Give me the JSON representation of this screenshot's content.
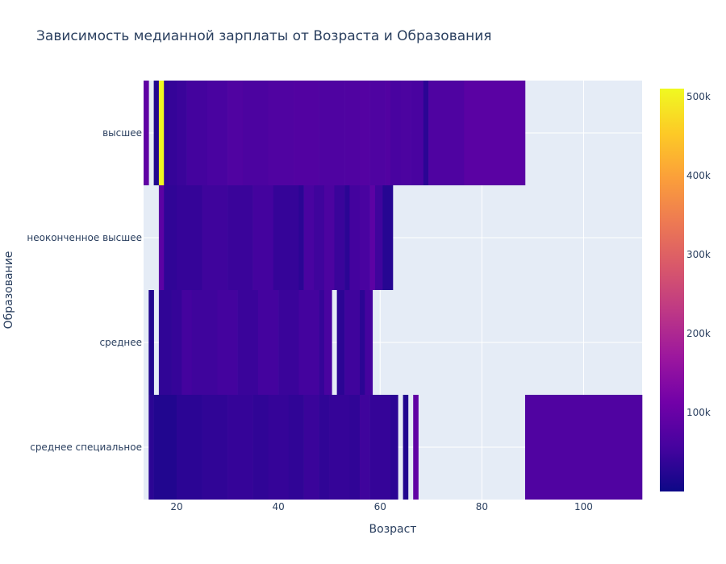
{
  "chart_data": {
    "type": "heatmap",
    "title": "Зависимость медианной зарплаты от Возраста и Образования",
    "xlabel": "Возраст",
    "ylabel": "Образование",
    "xlim": [
      13.5,
      111.5
    ],
    "xticks": [
      20,
      40,
      60,
      80,
      100
    ],
    "categories": [
      "высшее",
      "неоконченное высшее",
      "среднее",
      "среднее специальное"
    ],
    "colorscale": [
      "#0d0887",
      "#46039f",
      "#7201a8",
      "#9c179e",
      "#bd3786",
      "#d8576b",
      "#ed7953",
      "#fb9f3a",
      "#fdca26",
      "#f0f921"
    ],
    "colorbar": {
      "min": 0,
      "max": 510000,
      "ticks": [
        100000,
        200000,
        300000,
        400000,
        500000
      ],
      "tick_labels": [
        "100k",
        "200k",
        "300k",
        "400k",
        "500k"
      ]
    },
    "grid": true,
    "rows": [
      {
        "name": "высшее",
        "cells": [
          {
            "x0": 13.5,
            "x1": 14.5,
            "v": 90000
          },
          {
            "x0": 15.5,
            "x1": 16.5,
            "v": 20000
          },
          {
            "x0": 16.5,
            "x1": 17.5,
            "v": 510000
          },
          {
            "x0": 17.5,
            "x1": 18.5,
            "v": 35000
          },
          {
            "x0": 18.5,
            "x1": 20,
            "v": 40000
          },
          {
            "x0": 20,
            "x1": 22,
            "v": 45000
          },
          {
            "x0": 22,
            "x1": 26,
            "v": 55000
          },
          {
            "x0": 26,
            "x1": 30,
            "v": 60000
          },
          {
            "x0": 30,
            "x1": 33,
            "v": 70000
          },
          {
            "x0": 33,
            "x1": 38,
            "v": 65000
          },
          {
            "x0": 38,
            "x1": 43,
            "v": 70000
          },
          {
            "x0": 43,
            "x1": 48,
            "v": 72000
          },
          {
            "x0": 48,
            "x1": 53,
            "v": 68000
          },
          {
            "x0": 53,
            "x1": 56,
            "v": 70000
          },
          {
            "x0": 56,
            "x1": 58,
            "v": 75000
          },
          {
            "x0": 58,
            "x1": 61,
            "v": 68000
          },
          {
            "x0": 61,
            "x1": 62,
            "v": 72000
          },
          {
            "x0": 62,
            "x1": 64,
            "v": 60000
          },
          {
            "x0": 64,
            "x1": 66,
            "v": 65000
          },
          {
            "x0": 66,
            "x1": 68.5,
            "v": 60000
          },
          {
            "x0": 68.5,
            "x1": 69.5,
            "v": 30000
          },
          {
            "x0": 69.5,
            "x1": 76.5,
            "v": 68000
          },
          {
            "x0": 76.5,
            "x1": 88.5,
            "v": 82000
          }
        ]
      },
      {
        "name": "неоконченное высшее",
        "cells": [
          {
            "x0": 16.5,
            "x1": 17.5,
            "v": 85000
          },
          {
            "x0": 17.5,
            "x1": 20,
            "v": 35000
          },
          {
            "x0": 20,
            "x1": 25,
            "v": 40000
          },
          {
            "x0": 25,
            "x1": 30,
            "v": 50000
          },
          {
            "x0": 30,
            "x1": 35,
            "v": 45000
          },
          {
            "x0": 35,
            "x1": 39,
            "v": 55000
          },
          {
            "x0": 39,
            "x1": 44,
            "v": 40000
          },
          {
            "x0": 44,
            "x1": 45,
            "v": 30000
          },
          {
            "x0": 45,
            "x1": 47,
            "v": 60000
          },
          {
            "x0": 47,
            "x1": 49,
            "v": 50000
          },
          {
            "x0": 49,
            "x1": 51,
            "v": 65000
          },
          {
            "x0": 51,
            "x1": 53,
            "v": 45000
          },
          {
            "x0": 53,
            "x1": 54,
            "v": 30000
          },
          {
            "x0": 54,
            "x1": 56,
            "v": 55000
          },
          {
            "x0": 56,
            "x1": 58,
            "v": 60000
          },
          {
            "x0": 58,
            "x1": 59,
            "v": 85000
          },
          {
            "x0": 59,
            "x1": 60.5,
            "v": 50000
          },
          {
            "x0": 60.5,
            "x1": 62.5,
            "v": 25000
          }
        ]
      },
      {
        "name": "среднее",
        "cells": [
          {
            "x0": 14.5,
            "x1": 15.5,
            "v": 20000
          },
          {
            "x0": 16.5,
            "x1": 19,
            "v": 35000
          },
          {
            "x0": 19,
            "x1": 21,
            "v": 40000
          },
          {
            "x0": 21,
            "x1": 23,
            "v": 55000
          },
          {
            "x0": 23,
            "x1": 28,
            "v": 50000
          },
          {
            "x0": 28,
            "x1": 32,
            "v": 55000
          },
          {
            "x0": 32,
            "x1": 36,
            "v": 45000
          },
          {
            "x0": 36,
            "x1": 40,
            "v": 55000
          },
          {
            "x0": 40,
            "x1": 44,
            "v": 45000
          },
          {
            "x0": 44,
            "x1": 48,
            "v": 55000
          },
          {
            "x0": 48,
            "x1": 49,
            "v": 40000
          },
          {
            "x0": 49,
            "x1": 50.5,
            "v": 60000
          },
          {
            "x0": 51.5,
            "x1": 53,
            "v": 30000
          },
          {
            "x0": 53,
            "x1": 56,
            "v": 50000
          },
          {
            "x0": 56,
            "x1": 57,
            "v": 30000
          },
          {
            "x0": 57,
            "x1": 58.5,
            "v": 55000
          }
        ]
      },
      {
        "name": "среднее специальное",
        "cells": [
          {
            "x0": 14.5,
            "x1": 15.5,
            "v": 30000
          },
          {
            "x0": 15.5,
            "x1": 20,
            "v": 20000
          },
          {
            "x0": 20,
            "x1": 25,
            "v": 30000
          },
          {
            "x0": 25,
            "x1": 30,
            "v": 35000
          },
          {
            "x0": 30,
            "x1": 35,
            "v": 40000
          },
          {
            "x0": 35,
            "x1": 38,
            "v": 35000
          },
          {
            "x0": 38,
            "x1": 42,
            "v": 40000
          },
          {
            "x0": 42,
            "x1": 45,
            "v": 35000
          },
          {
            "x0": 45,
            "x1": 48,
            "v": 45000
          },
          {
            "x0": 48,
            "x1": 50,
            "v": 35000
          },
          {
            "x0": 50,
            "x1": 54,
            "v": 40000
          },
          {
            "x0": 54,
            "x1": 56,
            "v": 35000
          },
          {
            "x0": 56,
            "x1": 58,
            "v": 50000
          },
          {
            "x0": 58,
            "x1": 62,
            "v": 40000
          },
          {
            "x0": 62,
            "x1": 63.5,
            "v": 30000
          },
          {
            "x0": 64.5,
            "x1": 65.5,
            "v": 20000
          },
          {
            "x0": 66.5,
            "x1": 67.5,
            "v": 90000
          },
          {
            "x0": 88.5,
            "x1": 111.5,
            "v": 70000
          }
        ]
      }
    ]
  }
}
